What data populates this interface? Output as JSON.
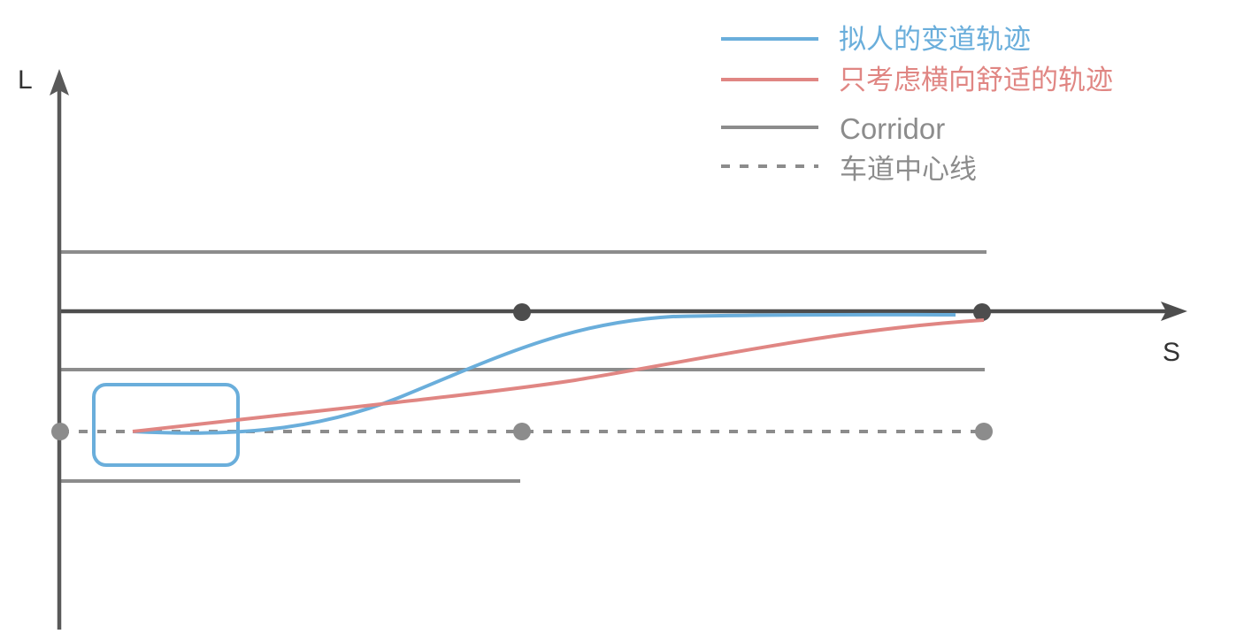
{
  "axes": {
    "y_label": "L",
    "x_label": "S"
  },
  "legend": {
    "items": [
      {
        "label": "拟人的变道轨迹",
        "color": "#6aaedb",
        "style": "solid"
      },
      {
        "label": "只考虑横向舒适的轨迹",
        "color": "#e08683",
        "style": "solid"
      },
      {
        "label": "Corridor",
        "color": "#8c8c8c",
        "style": "solid"
      },
      {
        "label": "车道中心线",
        "color": "#8c8c8c",
        "style": "dashed"
      }
    ]
  },
  "colors": {
    "axis": "#595959",
    "corridor": "#8c8c8c",
    "target_lane_line": "#4d4d4d",
    "human_like_trajectory": "#6aaedb",
    "lateral_comfort_trajectory": "#e08683",
    "vehicle_box": "#6aaedb",
    "center_line": "#8c8c8c"
  }
}
